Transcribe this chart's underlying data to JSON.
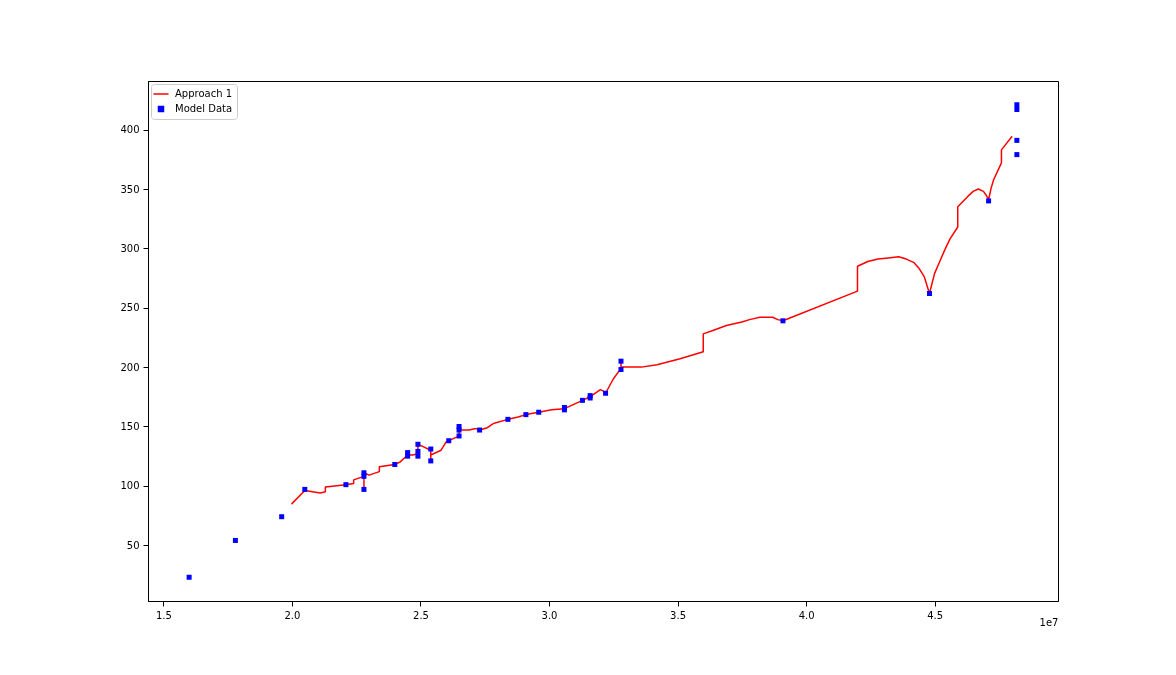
{
  "chart_data": {
    "type": "line",
    "series": [
      {
        "name": "Approach 1",
        "color": "#ff0000",
        "marker": "none",
        "line_style": "solid",
        "x": [
          2.0,
          2.05,
          2.08,
          2.11,
          2.13,
          2.13,
          2.21,
          2.24,
          2.24,
          2.28,
          2.28,
          2.28,
          2.3,
          2.34,
          2.34,
          2.4,
          2.42,
          2.45,
          2.47,
          2.49,
          2.49,
          2.51,
          2.54,
          2.54,
          2.54,
          2.58,
          2.6,
          2.64,
          2.65,
          2.65,
          2.65,
          2.69,
          2.71,
          2.72,
          2.73,
          2.76,
          2.78,
          2.79,
          2.84,
          2.88,
          2.91,
          2.96,
          3.01,
          3.06,
          3.09,
          3.13,
          3.16,
          3.18,
          3.2,
          3.21,
          3.22,
          3.25,
          3.27,
          3.28,
          3.28,
          3.28,
          3.3,
          3.36,
          3.42,
          3.51,
          3.6,
          3.6,
          3.64,
          3.69,
          3.75,
          3.78,
          3.82,
          3.85,
          3.87,
          3.89,
          3.91,
          4.2,
          4.2,
          4.24,
          4.28,
          4.32,
          4.36,
          4.39,
          4.42,
          4.44,
          4.46,
          4.47,
          4.48,
          4.5,
          4.52,
          4.54,
          4.56,
          4.59,
          4.59,
          4.63,
          4.65,
          4.67,
          4.69,
          4.7,
          4.71,
          4.72,
          4.73,
          4.76,
          4.76,
          4.8
        ],
        "values": [
          85,
          96,
          95,
          94,
          95,
          99,
          101,
          102,
          105,
          108,
          97,
          111,
          109,
          112,
          116,
          118,
          120,
          126,
          126,
          127,
          135,
          133,
          130,
          121,
          126,
          130,
          137,
          141,
          141,
          151,
          147,
          147,
          148,
          148,
          147,
          149,
          152,
          153,
          156,
          158,
          160,
          162,
          164,
          165,
          168,
          172,
          175,
          178,
          181,
          180,
          178,
          190,
          196,
          198,
          205,
          200,
          200,
          200,
          202,
          207,
          213,
          228,
          231,
          235,
          238,
          240,
          242,
          242,
          242,
          240,
          239,
          264,
          285,
          289,
          291,
          292,
          293,
          291,
          288,
          283,
          276,
          269,
          262,
          279,
          289,
          299,
          308,
          318,
          335,
          344,
          348,
          350,
          348,
          345,
          341,
          351,
          358,
          372,
          383,
          394
        ]
      },
      {
        "name": "Model Data",
        "type": "scatter",
        "color": "#0000ff",
        "marker": "square",
        "x": [
          1.6,
          1.78,
          1.96,
          2.05,
          2.21,
          2.28,
          2.28,
          2.28,
          2.4,
          2.45,
          2.45,
          2.49,
          2.49,
          2.49,
          2.54,
          2.54,
          2.61,
          2.65,
          2.65,
          2.65,
          2.73,
          2.84,
          2.91,
          2.96,
          3.06,
          3.06,
          3.13,
          3.16,
          3.16,
          3.22,
          3.28,
          3.28,
          3.91,
          4.48,
          4.71,
          4.82,
          4.82,
          4.82,
          4.82
        ],
        "values": [
          23,
          54,
          74,
          97,
          101,
          111,
          108,
          97,
          118,
          128,
          125,
          135,
          129,
          125,
          131,
          121,
          138,
          150,
          147,
          142,
          147,
          156,
          160,
          162,
          166,
          164,
          172,
          176,
          174,
          178,
          205,
          198,
          239,
          262,
          340,
          421,
          417,
          391,
          379
        ]
      }
    ],
    "xlabel": "1e7",
    "xlim": [
      1.44,
      4.98
    ],
    "xticks": [
      1.5,
      {
        "value": 2,
        "label": "2.0"
      },
      2.5,
      {
        "value": 3,
        "label": "3.0"
      },
      3.5,
      {
        "value": 4,
        "label": "4.0"
      },
      4.5
    ],
    "ylim": [
      3,
      441
    ],
    "yticks": [
      50,
      100,
      150,
      200,
      250,
      300,
      350,
      400
    ],
    "legend": "top left"
  }
}
